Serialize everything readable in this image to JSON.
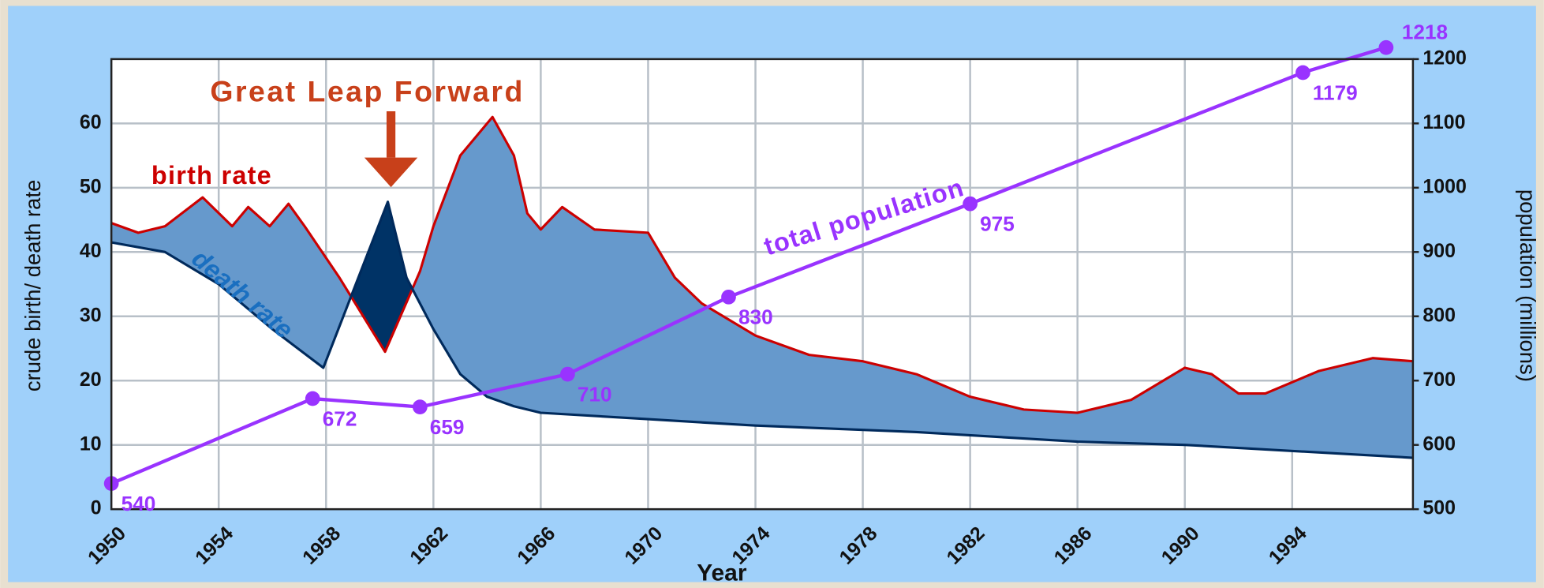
{
  "chart_data": {
    "type": "line",
    "x_label": "Year",
    "y_label": "crude birth/ death rate",
    "y2_label": "population (millions)",
    "annotations": [
      {
        "text": "Great Leap Forward"
      }
    ],
    "xlim": [
      1950,
      1998.5
    ],
    "xticks": [
      1950,
      1954,
      1958,
      1962,
      1966,
      1970,
      1974,
      1978,
      1982,
      1986,
      1990,
      1994
    ],
    "ylim": [
      0,
      70
    ],
    "yticks": [
      0,
      10,
      20,
      30,
      40,
      50,
      60
    ],
    "y2lim": [
      500,
      1200
    ],
    "y2ticks": [
      500,
      600,
      700,
      800,
      900,
      1000,
      1100,
      1200
    ],
    "grid": true,
    "fill_between": {
      "color": "#6699cc",
      "inverse_color": "#003366"
    },
    "series": [
      {
        "name": "birth rate",
        "color": "#cc0000",
        "x": [
          1950,
          1951,
          1952,
          1953.4,
          1954.5,
          1955.1,
          1955.9,
          1956.6,
          1957.2,
          1958.5,
          1960.2,
          1961.5,
          1962,
          1963,
          1964.2,
          1965,
          1965.5,
          1966,
          1966.8,
          1968,
          1970,
          1971,
          1972,
          1974,
          1976,
          1978,
          1980,
          1982,
          1984,
          1986,
          1988,
          1990,
          1991,
          1992,
          1993,
          1995,
          1997,
          1998.5
        ],
        "values": [
          44.5,
          43,
          44,
          48.5,
          44,
          47,
          44,
          47.5,
          44,
          36,
          24.5,
          37,
          44,
          55,
          61,
          55,
          46,
          43.5,
          47,
          43.5,
          43,
          36,
          32,
          27,
          24,
          23,
          21,
          17.5,
          15.5,
          15,
          17,
          22,
          21,
          18,
          18,
          21.5,
          23.5,
          23
        ]
      },
      {
        "name": "death rate",
        "color": "#002a5c",
        "x": [
          1950,
          1952,
          1954,
          1956,
          1957.9,
          1960.3,
          1961,
          1962,
          1963,
          1964,
          1965,
          1966,
          1970,
          1974,
          1980,
          1986,
          1990,
          1998.5
        ],
        "values": [
          41.5,
          40,
          35,
          28,
          22,
          47.8,
          36,
          28,
          21,
          17.5,
          16,
          15,
          14,
          13,
          12,
          10.5,
          10,
          8
        ]
      },
      {
        "name": "total population",
        "color": "#9933ff",
        "axis": "y2",
        "x": [
          1950,
          1957.5,
          1961.5,
          1967,
          1973,
          1982,
          1994.4,
          1997.5
        ],
        "values": [
          540,
          672,
          659,
          710,
          830,
          975,
          1179,
          1218
        ]
      }
    ]
  }
}
